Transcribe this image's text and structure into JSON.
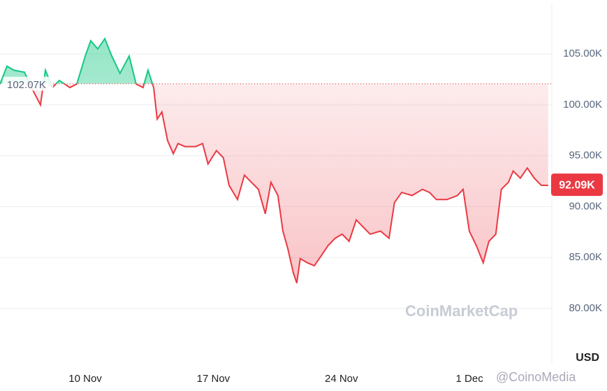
{
  "chart_data": {
    "type": "line",
    "y_unit": "USD",
    "watermark": "CoinMarketCap",
    "credit": "@CoinoMedia",
    "x": [
      5.34,
      5.72,
      6.1,
      6.68,
      7.06,
      7.55,
      7.82,
      8.2,
      8.58,
      9.16,
      9.54,
      10.0,
      10.3,
      10.68,
      11.07,
      11.45,
      11.9,
      12.4,
      12.78,
      13.16,
      13.43,
      13.74,
      13.93,
      14.19,
      14.5,
      14.81,
      15.07,
      15.45,
      16.03,
      16.41,
      16.71,
      17.17,
      17.55,
      17.86,
      18.32,
      18.7,
      19.08,
      19.46,
      19.84,
      20.15,
      20.53,
      20.8,
      21.07,
      21.37,
      21.56,
      21.75,
      22.13,
      22.52,
      22.9,
      23.28,
      23.66,
      24.04,
      24.42,
      24.81,
      25.19,
      25.57,
      26.14,
      26.6,
      26.9,
      27.29,
      27.86,
      28.43,
      28.81,
      29.19,
      29.77,
      30.34,
      30.65,
      30.99,
      31.37,
      31.75,
      32.06,
      32.44,
      32.74,
      33.13,
      33.39,
      33.78,
      34.16,
      34.54,
      34.92,
      35.3
    ],
    "values": [
      102.05,
      103.8,
      103.4,
      103.2,
      101.7,
      100.0,
      103.4,
      101.7,
      102.4,
      101.7,
      102.05,
      104.8,
      106.3,
      105.5,
      106.5,
      104.8,
      103.1,
      104.8,
      102.05,
      101.7,
      103.4,
      101.7,
      98.6,
      99.3,
      96.5,
      95.2,
      96.2,
      95.9,
      95.9,
      96.2,
      94.2,
      95.5,
      94.8,
      92.1,
      90.7,
      93.1,
      92.4,
      91.7,
      89.3,
      92.4,
      91.1,
      87.6,
      85.9,
      83.5,
      82.5,
      84.9,
      84.5,
      84.2,
      85.2,
      86.2,
      86.9,
      87.3,
      86.6,
      88.7,
      88.0,
      87.3,
      87.6,
      86.9,
      90.4,
      91.4,
      91.1,
      91.7,
      91.4,
      90.7,
      90.7,
      91.1,
      91.7,
      87.6,
      86.2,
      84.5,
      86.6,
      87.3,
      91.7,
      92.4,
      93.5,
      92.8,
      93.8,
      92.8,
      92.1,
      92.09
    ],
    "baseline": {
      "value": 102.07,
      "label": "102.07K"
    },
    "current": {
      "value": 92.09,
      "label": "92.09K"
    },
    "up_color": "#16c784",
    "down_color": "#ea3943",
    "xlim": [
      5.34,
      35.5
    ],
    "xticks": [
      {
        "value": 10,
        "label": "10 Nov"
      },
      {
        "value": 17,
        "label": "17 Nov"
      },
      {
        "value": 24,
        "label": "24 Nov"
      },
      {
        "value": 31,
        "label": "1 Dec"
      }
    ],
    "ylim": [
      76.5,
      110.3
    ],
    "yticks": [
      {
        "value": 80,
        "label": "80.00K"
      },
      {
        "value": 85,
        "label": "85.00K"
      },
      {
        "value": 90,
        "label": "90.00K"
      },
      {
        "value": 95,
        "label": "95.00K"
      },
      {
        "value": 100,
        "label": "100.00K"
      },
      {
        "value": 105,
        "label": "105.00K"
      }
    ],
    "grid": true
  }
}
